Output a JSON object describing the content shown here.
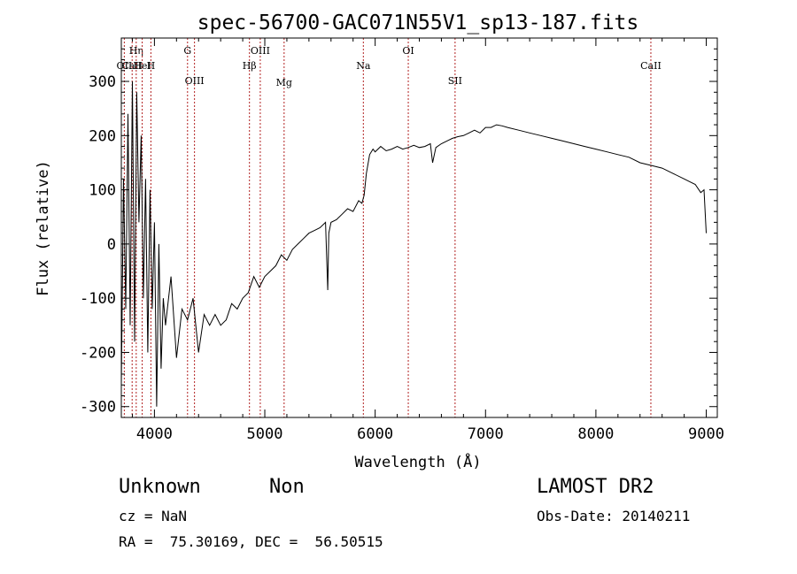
{
  "chart_data": {
    "type": "line",
    "title": "spec-56700-GAC071N55V1_sp13-187.fits",
    "xlabel": "Wavelength (Å)",
    "ylabel": "Flux (relative)",
    "xlim": [
      3700,
      9100
    ],
    "ylim": [
      -320,
      380
    ],
    "xticks": [
      4000,
      5000,
      6000,
      7000,
      8000,
      9000
    ],
    "yticks": [
      -300,
      -200,
      -100,
      0,
      100,
      200,
      300
    ],
    "grid": false,
    "line_color": "#000000",
    "marker_color": "#b22222",
    "series": [
      {
        "x": [
          3700,
          3720,
          3740,
          3760,
          3780,
          3800,
          3820,
          3840,
          3860,
          3880,
          3900,
          3920,
          3940,
          3960,
          3980,
          4000,
          4020,
          4040,
          4060,
          4080,
          4100,
          4150,
          4200,
          4250,
          4300,
          4350,
          4400,
          4450,
          4500,
          4550,
          4600,
          4650,
          4700,
          4750,
          4800,
          4850,
          4900,
          4950,
          5000,
          5050,
          5100,
          5150,
          5200,
          5250,
          5300,
          5350,
          5400,
          5450,
          5500,
          5550,
          5570,
          5580,
          5600,
          5650,
          5700,
          5750,
          5800,
          5850,
          5880,
          5900,
          5920,
          5950,
          5980,
          6000,
          6050,
          6100,
          6150,
          6200,
          6250,
          6300,
          6350,
          6400,
          6450,
          6500,
          6520,
          6550,
          6600,
          6650,
          6700,
          6750,
          6800,
          6850,
          6900,
          6950,
          7000,
          7050,
          7100,
          7150,
          7200,
          7300,
          7400,
          7500,
          7600,
          7700,
          7800,
          7900,
          8000,
          8100,
          8200,
          8300,
          8400,
          8500,
          8600,
          8700,
          8800,
          8850,
          8900,
          8950,
          8980,
          9000
        ],
        "y": [
          -260,
          120,
          -120,
          240,
          -150,
          300,
          -180,
          280,
          40,
          200,
          -100,
          120,
          -200,
          100,
          -120,
          40,
          -300,
          0,
          -230,
          -100,
          -150,
          -60,
          -210,
          -120,
          -140,
          -100,
          -200,
          -130,
          -150,
          -130,
          -150,
          -140,
          -110,
          -120,
          -100,
          -90,
          -60,
          -80,
          -60,
          -50,
          -40,
          -20,
          -30,
          -10,
          0,
          10,
          20,
          25,
          30,
          40,
          -85,
          20,
          40,
          45,
          55,
          65,
          60,
          80,
          75,
          90,
          130,
          165,
          175,
          170,
          180,
          172,
          175,
          180,
          175,
          178,
          182,
          178,
          180,
          185,
          150,
          178,
          185,
          190,
          195,
          198,
          200,
          205,
          210,
          205,
          215,
          215,
          220,
          218,
          215,
          210,
          205,
          200,
          195,
          190,
          185,
          180,
          175,
          170,
          165,
          160,
          150,
          145,
          140,
          130,
          120,
          115,
          110,
          95,
          100,
          20
        ]
      }
    ],
    "lines": [
      {
        "wavelength": 3727,
        "label": "OII",
        "row": "top"
      },
      {
        "wavelength": 3798,
        "label": "CaII",
        "row": "top"
      },
      {
        "wavelength": 3835,
        "label": "Hη",
        "row": "upper"
      },
      {
        "wavelength": 3889,
        "label": "HeI",
        "row": "top"
      },
      {
        "wavelength": 3968,
        "label": "H",
        "row": "middle"
      },
      {
        "wavelength": 4300,
        "label": "G",
        "row": "upper"
      },
      {
        "wavelength": 4363,
        "label": "OIII",
        "row": "bottom"
      },
      {
        "wavelength": 4861,
        "label": "Hβ",
        "row": "middle"
      },
      {
        "wavelength": 4959,
        "label": "OIII",
        "row": "upper"
      },
      {
        "wavelength": 5175,
        "label": "Mg",
        "row": "low"
      },
      {
        "wavelength": 5893,
        "label": "Na",
        "row": "middle"
      },
      {
        "wavelength": 6300,
        "label": "OI",
        "row": "upper"
      },
      {
        "wavelength": 6724,
        "label": "SII",
        "row": "bottom"
      },
      {
        "wavelength": 8498,
        "label": "CaII",
        "row": "middle"
      }
    ]
  },
  "info": {
    "class": "Unknown",
    "subclass": "Non",
    "survey": "LAMOST DR2",
    "cz": "cz = NaN",
    "obs_date": "Obs-Date: 20140211",
    "coords": "RA =  75.30169, DEC =  56.50515"
  }
}
